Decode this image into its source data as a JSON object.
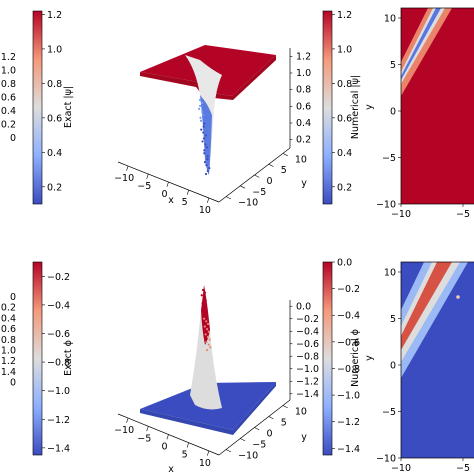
{
  "colors": {
    "cmap_low": "#3b4cc0",
    "cmap_mid": "#dddddd",
    "cmap_high": "#b40426",
    "axis": "#000000"
  },
  "chart_data": [
    {
      "id": "psi",
      "type": "surface3d",
      "colorbar_exact": {
        "label": "Exact |ψ|",
        "ticks": [
          "1.2",
          "1.0",
          "0.8",
          "0.6",
          "0.4",
          "0.2"
        ],
        "range": [
          0.1,
          1.22
        ]
      },
      "colorbar_numerical": {
        "label": "Numerical |ψ|",
        "ticks": [
          "1.2",
          "1.0",
          "0.8",
          "0.6",
          "0.4",
          "0.2"
        ],
        "range": [
          0.1,
          1.22
        ]
      },
      "left_partial_ticks": [
        "1.2",
        "1.0",
        "0.8",
        "0.6",
        "0.4",
        "0.2",
        "0.0"
      ],
      "surface": {
        "xlabel": "x",
        "ylabel": "y",
        "x_ticks": [
          "−10",
          "−5",
          "0",
          "5",
          "10"
        ],
        "y_ticks": [
          "−10",
          "−5",
          "0",
          "5",
          "10"
        ],
        "z_ticks": [
          "0.2",
          "0.4",
          "0.6",
          "0.8",
          "1.0",
          "1.2"
        ],
        "plateau": 1.2,
        "dip_min": 0.1
      },
      "heatmap": {
        "ylabel": "y",
        "y_ticks": [
          "10",
          "5",
          "0",
          "−5",
          "−10"
        ],
        "x_ticks": [
          "−10",
          "−5"
        ]
      }
    },
    {
      "id": "phi",
      "type": "surface3d",
      "colorbar_exact": {
        "label": "Exact ϕ",
        "ticks": [
          "−0.2",
          "−0.4",
          "−0.6",
          "−0.8",
          "−1.0",
          "−1.2",
          "−1.4"
        ],
        "range": [
          -1.45,
          -0.1
        ]
      },
      "colorbar_numerical": {
        "label": "Numerical ϕ",
        "ticks": [
          "0.0",
          "−0.2",
          "−0.4",
          "−0.6",
          "−0.8",
          "−1.0",
          "−1.2",
          "−1.4"
        ],
        "range": [
          -1.45,
          0.0
        ]
      },
      "left_partial_ticks": [
        "0.0",
        "−0.2",
        "−0.4",
        "−0.6",
        "−0.8",
        "−1.0",
        "−1.2",
        "−1.4",
        "0"
      ],
      "surface": {
        "xlabel": "x",
        "ylabel": "y",
        "x_ticks": [
          "−10",
          "−5",
          "0",
          "5",
          "10"
        ],
        "y_ticks": [
          "−10",
          "−5",
          "0",
          "5",
          "10"
        ],
        "z_ticks": [
          "−1.4",
          "−1.2",
          "−1.0",
          "−0.8",
          "−0.6",
          "−0.4",
          "−0.2",
          "0.0"
        ],
        "plateau": -1.45,
        "peak_max": 0.0
      },
      "heatmap": {
        "ylabel": "y",
        "y_ticks": [
          "10",
          "5",
          "0",
          "−5",
          "−10"
        ],
        "x_ticks": [
          "−10",
          "−5"
        ]
      }
    }
  ]
}
